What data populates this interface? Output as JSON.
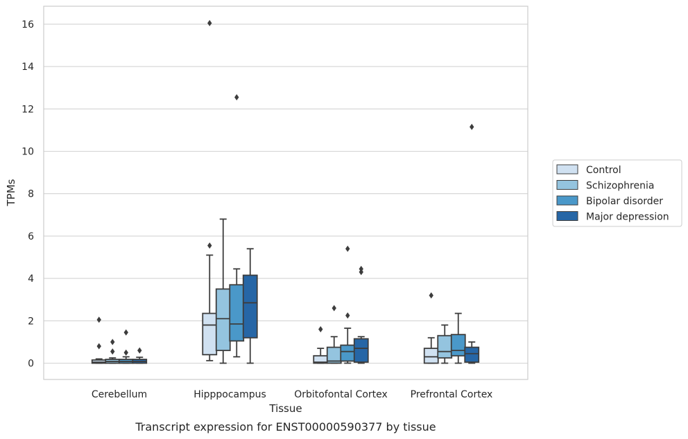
{
  "chart_data": {
    "type": "box",
    "title": "",
    "caption": "Transcript expression for ENST00000590377 by tissue",
    "xlabel": "Tissue",
    "ylabel": "TPMs",
    "ylim": [
      -0.8,
      16.8
    ],
    "yticks": [
      0,
      2,
      4,
      6,
      8,
      10,
      12,
      14,
      16
    ],
    "grid": "horizontal",
    "legend_position": "right",
    "categories": [
      "Cerebellum",
      "Hipppocampus",
      "Orbitofontal Cortex",
      "Prefrontal Cortex"
    ],
    "series": [
      {
        "name": "Control",
        "color": "#d0e1f1",
        "boxes": [
          {
            "whislo": 0,
            "q1": 0,
            "med": 0.05,
            "q3": 0.15,
            "whishi": 0.2,
            "fliers": [
              0.8,
              2.05
            ]
          },
          {
            "whislo": 0.12,
            "q1": 0.4,
            "med": 1.8,
            "q3": 2.35,
            "whishi": 5.1,
            "fliers": [
              5.55,
              16.05
            ]
          },
          {
            "whislo": 0,
            "q1": 0,
            "med": 0.05,
            "q3": 0.35,
            "whishi": 0.7,
            "fliers": [
              1.6
            ]
          },
          {
            "whislo": 0,
            "q1": 0,
            "med": 0.3,
            "q3": 0.7,
            "whishi": 1.2,
            "fliers": [
              3.2
            ]
          }
        ]
      },
      {
        "name": "Schizophrenia",
        "color": "#94c4df",
        "boxes": [
          {
            "whislo": 0,
            "q1": 0,
            "med": 0.08,
            "q3": 0.18,
            "whishi": 0.25,
            "fliers": [
              0.55,
              1.0
            ]
          },
          {
            "whislo": 0,
            "q1": 0.6,
            "med": 2.1,
            "q3": 3.5,
            "whishi": 6.8,
            "fliers": []
          },
          {
            "whislo": 0,
            "q1": 0,
            "med": 0.1,
            "q3": 0.75,
            "whishi": 1.25,
            "fliers": [
              2.6
            ]
          },
          {
            "whislo": 0,
            "q1": 0.25,
            "med": 0.55,
            "q3": 1.3,
            "whishi": 1.8,
            "fliers": []
          }
        ]
      },
      {
        "name": "Bipolar disorder",
        "color": "#4a98c9",
        "boxes": [
          {
            "whislo": 0,
            "q1": 0,
            "med": 0.08,
            "q3": 0.18,
            "whishi": 0.3,
            "fliers": [
              0.5,
              1.45
            ]
          },
          {
            "whislo": 0.3,
            "q1": 1.05,
            "med": 1.85,
            "q3": 3.7,
            "whishi": 4.45,
            "fliers": [
              12.55
            ]
          },
          {
            "whislo": 0,
            "q1": 0.1,
            "med": 0.55,
            "q3": 0.85,
            "whishi": 1.65,
            "fliers": [
              2.25,
              5.4
            ]
          },
          {
            "whislo": 0,
            "q1": 0.35,
            "med": 0.6,
            "q3": 1.35,
            "whishi": 2.35,
            "fliers": []
          }
        ]
      },
      {
        "name": "Major depression",
        "color": "#2666a6",
        "boxes": [
          {
            "whislo": 0,
            "q1": 0,
            "med": 0.08,
            "q3": 0.18,
            "whishi": 0.28,
            "fliers": [
              0.6
            ]
          },
          {
            "whislo": 0,
            "q1": 1.2,
            "med": 2.85,
            "q3": 4.15,
            "whishi": 5.4,
            "fliers": []
          },
          {
            "whislo": 0,
            "q1": 0.05,
            "med": 0.7,
            "q3": 1.15,
            "whishi": 1.25,
            "fliers": [
              4.3,
              4.45
            ]
          },
          {
            "whislo": 0,
            "q1": 0.05,
            "med": 0.45,
            "q3": 0.75,
            "whishi": 1.0,
            "fliers": [
              11.15
            ]
          }
        ]
      }
    ]
  }
}
